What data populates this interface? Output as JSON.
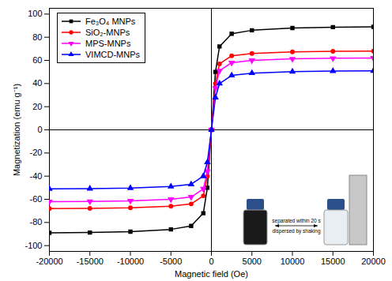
{
  "chart_data": {
    "type": "line",
    "xlabel": "Magnetic field (Oe)",
    "ylabel": "Magnetization (emu g⁻¹)",
    "x": [
      -20000,
      -15000,
      -10000,
      -5000,
      -2500,
      -1000,
      -500,
      0,
      500,
      1000,
      2500,
      5000,
      10000,
      15000,
      20000
    ],
    "series": [
      {
        "name": "Fe₃O₄ MNPs",
        "color": "#000000",
        "marker": "square",
        "values": [
          -89,
          -88.7,
          -88,
          -86,
          -83,
          -72,
          -50,
          0,
          50,
          72,
          83,
          86,
          88,
          88.7,
          89
        ]
      },
      {
        "name": "SiO₂-MNPs",
        "color": "#ff0000",
        "marker": "circle",
        "values": [
          -68,
          -67.8,
          -67.3,
          -66,
          -64,
          -57,
          -40,
          0,
          40,
          57,
          64,
          66,
          67.3,
          67.8,
          68
        ]
      },
      {
        "name": "MPS-MNPs",
        "color": "#ff00ff",
        "marker": "triangle-down",
        "values": [
          -62,
          -61.8,
          -61.3,
          -60,
          -58,
          -51,
          -36,
          0,
          36,
          51,
          58,
          60,
          61.3,
          61.8,
          62
        ]
      },
      {
        "name": "VIMCD-MNPs",
        "color": "#0000ff",
        "marker": "triangle",
        "values": [
          -51,
          -50.8,
          -50.3,
          -49,
          -47,
          -40,
          -28,
          0,
          28,
          40,
          47,
          49,
          50.3,
          50.8,
          51
        ]
      }
    ],
    "xlim": [
      -20000,
      20000
    ],
    "xticks": [
      -20000,
      -15000,
      -10000,
      -5000,
      0,
      5000,
      10000,
      15000,
      20000
    ],
    "ylim": [
      -105,
      105
    ],
    "yticks": [
      -100,
      -80,
      -60,
      -40,
      -20,
      0,
      20,
      40,
      60,
      80,
      100
    ],
    "legend": "upper-left",
    "grid": false,
    "annotations": [
      "separated within 20 s",
      "dispersed by shaking"
    ]
  }
}
